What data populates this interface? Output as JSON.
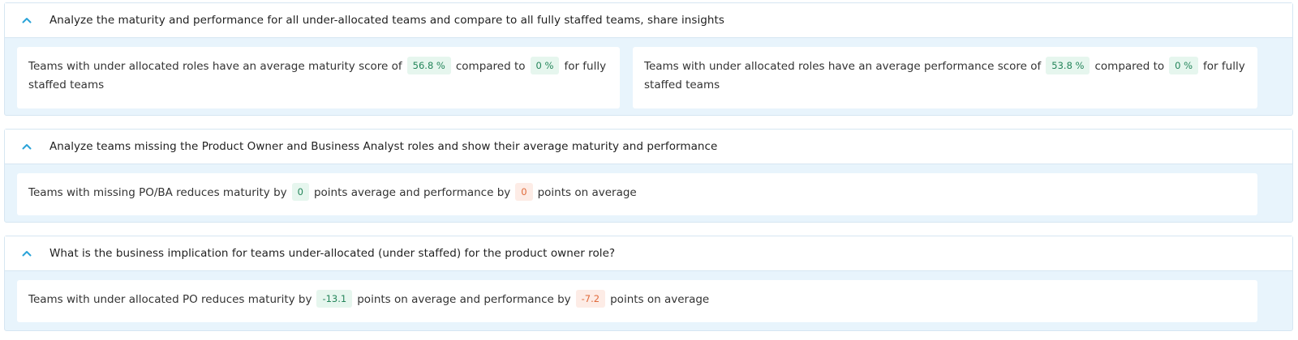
{
  "colors": {
    "accent": "#2aa3d8",
    "panel_bg": "#e8f4fc",
    "good_bg": "#e6f6ee",
    "good_text": "#24855a",
    "bad_bg": "#fdece6",
    "bad_text": "#e06a3b"
  },
  "icons": {
    "collapse": "chevron-up-icon"
  },
  "sections": [
    {
      "question": "Analyze the maturity and performance for all under-allocated teams and compare to all fully staffed teams, share insights",
      "cards": [
        {
          "prefix": "Teams with under allocated roles have an average maturity score of",
          "value1": "56.8 %",
          "middle": "compared to",
          "value2": "0 %",
          "suffix": "for fully staffed teams"
        },
        {
          "prefix": "Teams with under allocated roles have an average performance score of",
          "value1": "53.8 %",
          "middle": "compared to",
          "value2": "0 %",
          "suffix": "for fully staffed teams"
        }
      ]
    },
    {
      "question": "Analyze teams missing the Product Owner and Business Analyst roles and show their average maturity and performance",
      "cards": [
        {
          "prefix": "Teams with missing PO/BA reduces maturity by",
          "value1": "0",
          "middle": "points average and performance by",
          "value2": "0",
          "suffix": "points on average"
        }
      ]
    },
    {
      "question": "What is the business implication for teams under-allocated (under staffed) for the product owner role?",
      "cards": [
        {
          "prefix": "Teams with under allocated PO reduces maturity by",
          "value1": "-13.1",
          "middle": "points on average and performance by",
          "value2": "-7.2",
          "suffix": "points on average"
        }
      ]
    }
  ]
}
